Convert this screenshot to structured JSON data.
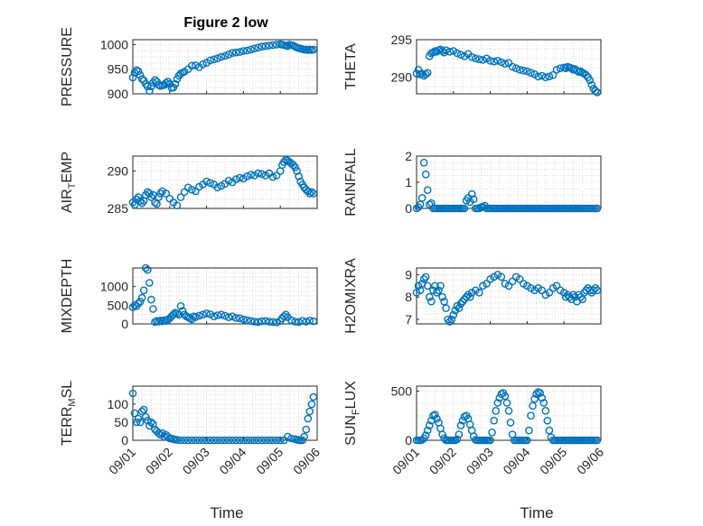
{
  "figure": {
    "title": "Figure 2 low",
    "xlabel": "Time",
    "xticks": [
      "09/01",
      "09/02",
      "09/03",
      "09/04",
      "09/05",
      "09/06"
    ],
    "marker_color": "#0072BD",
    "grid_color": "#d9d9d9"
  },
  "chart_data": [
    {
      "type": "scatter",
      "ylabel": "PRESSURE",
      "xlim": [
        0,
        5
      ],
      "ylim": [
        900,
        1010
      ],
      "yticks": [
        900,
        950,
        1000
      ],
      "x": [
        0.0,
        0.05,
        0.1,
        0.15,
        0.2,
        0.25,
        0.3,
        0.35,
        0.4,
        0.45,
        0.5,
        0.55,
        0.6,
        0.65,
        0.7,
        0.75,
        0.8,
        0.85,
        0.9,
        0.95,
        1.0,
        1.05,
        1.1,
        1.15,
        1.2,
        1.25,
        1.3,
        1.35,
        1.4,
        1.5,
        1.6,
        1.7,
        1.8,
        1.9,
        2.0,
        2.1,
        2.2,
        2.3,
        2.4,
        2.5,
        2.6,
        2.7,
        2.8,
        2.9,
        3.0,
        3.1,
        3.2,
        3.3,
        3.4,
        3.5,
        3.6,
        3.7,
        3.8,
        3.9,
        4.0,
        4.05,
        4.1,
        4.15,
        4.2,
        4.25,
        4.3,
        4.35,
        4.4,
        4.45,
        4.5,
        4.55,
        4.6,
        4.65,
        4.7,
        4.75,
        4.8,
        4.85,
        4.9
      ],
      "values": [
        933,
        943,
        948,
        946,
        938,
        930,
        927,
        920,
        915,
        906,
        915,
        923,
        928,
        925,
        918,
        916,
        917,
        918,
        922,
        925,
        920,
        912,
        913,
        920,
        930,
        937,
        941,
        943,
        945,
        950,
        957,
        958,
        954,
        960,
        963,
        968,
        970,
        972,
        975,
        977,
        980,
        983,
        984,
        985,
        987,
        988,
        990,
        992,
        994,
        996,
        997,
        998,
        999,
        1000,
        1001,
        1000,
        999,
        998,
        997,
        1000,
        999,
        998,
        996,
        994,
        993,
        992,
        991,
        990,
        990,
        989,
        990,
        989,
        990
      ]
    },
    {
      "type": "scatter",
      "ylabel": "THETA",
      "xlim": [
        0,
        5
      ],
      "ylim": [
        287.8,
        295
      ],
      "yticks": [
        290,
        295
      ],
      "x": [
        0.0,
        0.05,
        0.1,
        0.15,
        0.2,
        0.25,
        0.3,
        0.35,
        0.4,
        0.45,
        0.5,
        0.55,
        0.6,
        0.65,
        0.7,
        0.75,
        0.8,
        0.9,
        1.0,
        1.1,
        1.2,
        1.3,
        1.4,
        1.5,
        1.6,
        1.7,
        1.8,
        1.9,
        2.0,
        2.1,
        2.2,
        2.3,
        2.4,
        2.5,
        2.6,
        2.7,
        2.8,
        2.9,
        3.0,
        3.1,
        3.2,
        3.3,
        3.4,
        3.5,
        3.6,
        3.7,
        3.8,
        3.9,
        4.0,
        4.05,
        4.1,
        4.15,
        4.2,
        4.25,
        4.3,
        4.35,
        4.4,
        4.45,
        4.5,
        4.55,
        4.6,
        4.65,
        4.7,
        4.75,
        4.8,
        4.85,
        4.9
      ],
      "values": [
        290.5,
        291.0,
        290.4,
        290.5,
        290.2,
        290.4,
        290.6,
        292.8,
        293.2,
        293.3,
        293.5,
        293.4,
        293.6,
        293.7,
        293.5,
        293.3,
        293.6,
        293.4,
        293.5,
        293.2,
        293.0,
        292.8,
        293.1,
        292.7,
        292.5,
        292.4,
        292.3,
        292.5,
        292.2,
        292.1,
        292.2,
        292.0,
        291.8,
        291.9,
        291.4,
        291.2,
        291.0,
        290.9,
        290.8,
        290.6,
        290.4,
        290.1,
        290.2,
        290.0,
        290.1,
        290.3,
        291.0,
        291.2,
        291.3,
        291.2,
        291.4,
        291.3,
        291.2,
        291.0,
        291.1,
        290.9,
        290.7,
        290.8,
        290.6,
        290.5,
        290.3,
        290.0,
        289.6,
        289.0,
        288.5,
        288.2,
        288.0
      ]
    },
    {
      "type": "scatter",
      "ylabel": "AIR_TEMP",
      "xlim": [
        0,
        5
      ],
      "ylim": [
        285,
        292
      ],
      "yticks": [
        285,
        290
      ],
      "x": [
        0.0,
        0.05,
        0.1,
        0.15,
        0.2,
        0.25,
        0.3,
        0.35,
        0.4,
        0.45,
        0.5,
        0.55,
        0.6,
        0.65,
        0.7,
        0.75,
        0.8,
        0.9,
        1.0,
        1.1,
        1.2,
        1.3,
        1.4,
        1.5,
        1.6,
        1.7,
        1.8,
        1.9,
        2.0,
        2.1,
        2.2,
        2.3,
        2.4,
        2.5,
        2.6,
        2.7,
        2.8,
        2.9,
        3.0,
        3.1,
        3.2,
        3.3,
        3.4,
        3.5,
        3.6,
        3.7,
        3.8,
        3.9,
        4.0,
        4.05,
        4.1,
        4.15,
        4.2,
        4.25,
        4.3,
        4.35,
        4.4,
        4.45,
        4.5,
        4.55,
        4.6,
        4.65,
        4.7,
        4.75,
        4.8,
        4.85,
        4.9
      ],
      "values": [
        285.8,
        285.5,
        286.2,
        286.5,
        286.0,
        285.7,
        286.0,
        286.8,
        287.2,
        287.0,
        286.5,
        286.8,
        285.8,
        285.6,
        286.5,
        287.0,
        287.3,
        287.0,
        286.3,
        285.8,
        285.4,
        286.5,
        287.2,
        287.8,
        287.5,
        287.3,
        287.9,
        288.2,
        288.6,
        288.4,
        288.2,
        287.8,
        288.0,
        288.3,
        288.7,
        288.5,
        288.9,
        289.1,
        289.0,
        289.3,
        289.5,
        289.4,
        289.7,
        289.6,
        289.4,
        289.7,
        289.2,
        289.4,
        290.0,
        290.8,
        291.2,
        291.5,
        291.4,
        291.2,
        291.0,
        290.8,
        290.5,
        290.0,
        289.3,
        288.6,
        288.2,
        287.8,
        287.5,
        287.3,
        287.0,
        287.2,
        287.0
      ]
    },
    {
      "type": "scatter",
      "ylabel": "RAINFALL",
      "xlim": [
        0,
        5
      ],
      "ylim": [
        0,
        2
      ],
      "yticks": [
        0,
        1,
        2
      ],
      "x": [
        0.0,
        0.05,
        0.1,
        0.15,
        0.2,
        0.25,
        0.3,
        0.35,
        0.4,
        0.45,
        0.5,
        0.55,
        0.6,
        0.65,
        0.7,
        0.75,
        0.8,
        0.85,
        0.9,
        0.95,
        1.0,
        1.05,
        1.1,
        1.15,
        1.2,
        1.25,
        1.3,
        1.35,
        1.4,
        1.45,
        1.5,
        1.55,
        1.6,
        1.65,
        1.7,
        1.75,
        1.8,
        1.85,
        1.9,
        1.95,
        2.0,
        2.05,
        2.1,
        2.15,
        2.2,
        2.25,
        2.3,
        2.35,
        2.4,
        2.45,
        2.5,
        2.55,
        2.6,
        2.65,
        2.7,
        2.75,
        2.8,
        2.85,
        2.9,
        2.95,
        3.0,
        3.05,
        3.1,
        3.15,
        3.2,
        3.25,
        3.3,
        3.35,
        3.4,
        3.45,
        3.5,
        3.55,
        3.6,
        3.65,
        3.7,
        3.75,
        3.8,
        3.85,
        3.9,
        3.95,
        4.0,
        4.05,
        4.1,
        4.15,
        4.2,
        4.25,
        4.3,
        4.35,
        4.4,
        4.45,
        4.5,
        4.55,
        4.6,
        4.65,
        4.7,
        4.75,
        4.8,
        4.85,
        4.9
      ],
      "values": [
        0,
        0.05,
        0.15,
        0.4,
        1.75,
        1.3,
        0.7,
        0.15,
        0.2,
        0,
        0,
        0,
        0,
        0,
        0,
        0,
        0,
        0,
        0,
        0,
        0,
        0,
        0,
        0,
        0,
        0,
        0,
        0.3,
        0.4,
        0.25,
        0.55,
        0.35,
        0,
        0,
        0,
        0.05,
        0.05,
        0.1,
        0,
        0,
        0,
        0,
        0,
        0,
        0,
        0,
        0,
        0,
        0,
        0,
        0,
        0,
        0,
        0,
        0,
        0,
        0,
        0,
        0,
        0,
        0,
        0,
        0,
        0,
        0,
        0,
        0,
        0,
        0,
        0,
        0,
        0,
        0,
        0,
        0,
        0,
        0,
        0,
        0,
        0,
        0,
        0,
        0,
        0,
        0,
        0,
        0,
        0,
        0,
        0,
        0,
        0,
        0,
        0,
        0,
        0,
        0,
        0,
        0
      ]
    },
    {
      "type": "scatter",
      "ylabel": "MIXDEPTH",
      "xlim": [
        0,
        5
      ],
      "ylim": [
        0,
        1500
      ],
      "yticks": [
        0,
        500,
        1000
      ],
      "x": [
        0.0,
        0.05,
        0.1,
        0.15,
        0.2,
        0.25,
        0.3,
        0.35,
        0.4,
        0.45,
        0.5,
        0.55,
        0.6,
        0.65,
        0.7,
        0.75,
        0.8,
        0.85,
        0.9,
        0.95,
        1.0,
        1.05,
        1.1,
        1.15,
        1.2,
        1.25,
        1.3,
        1.35,
        1.4,
        1.45,
        1.5,
        1.55,
        1.6,
        1.65,
        1.7,
        1.8,
        1.9,
        2.0,
        2.1,
        2.2,
        2.3,
        2.4,
        2.5,
        2.6,
        2.7,
        2.8,
        2.9,
        3.0,
        3.1,
        3.2,
        3.3,
        3.4,
        3.5,
        3.6,
        3.7,
        3.8,
        3.9,
        4.0,
        4.05,
        4.1,
        4.15,
        4.2,
        4.3,
        4.4,
        4.5,
        4.6,
        4.7,
        4.8,
        4.9
      ],
      "values": [
        450,
        500,
        480,
        550,
        600,
        700,
        900,
        1500,
        1450,
        1100,
        650,
        400,
        50,
        80,
        60,
        90,
        70,
        100,
        80,
        120,
        150,
        200,
        250,
        300,
        280,
        250,
        480,
        350,
        250,
        200,
        180,
        150,
        120,
        200,
        180,
        220,
        250,
        280,
        260,
        200,
        230,
        250,
        220,
        180,
        200,
        160,
        150,
        120,
        100,
        80,
        60,
        50,
        70,
        80,
        60,
        50,
        40,
        80,
        150,
        200,
        250,
        180,
        100,
        60,
        50,
        80,
        60,
        90,
        70
      ]
    },
    {
      "type": "scatter",
      "ylabel": "H2OMIXRA",
      "xlim": [
        0,
        5
      ],
      "ylim": [
        6.8,
        9.3
      ],
      "yticks": [
        7,
        8,
        9
      ],
      "x": [
        0.0,
        0.05,
        0.1,
        0.15,
        0.2,
        0.25,
        0.3,
        0.35,
        0.4,
        0.45,
        0.5,
        0.55,
        0.6,
        0.65,
        0.7,
        0.75,
        0.8,
        0.85,
        0.9,
        0.95,
        1.0,
        1.05,
        1.1,
        1.15,
        1.2,
        1.25,
        1.3,
        1.35,
        1.4,
        1.45,
        1.5,
        1.6,
        1.7,
        1.8,
        1.9,
        2.0,
        2.1,
        2.2,
        2.3,
        2.4,
        2.5,
        2.6,
        2.7,
        2.8,
        2.9,
        3.0,
        3.1,
        3.2,
        3.3,
        3.4,
        3.5,
        3.6,
        3.7,
        3.8,
        3.9,
        4.0,
        4.05,
        4.1,
        4.15,
        4.2,
        4.25,
        4.3,
        4.35,
        4.4,
        4.45,
        4.5,
        4.55,
        4.6,
        4.65,
        4.7,
        4.75,
        4.8,
        4.85,
        4.9
      ],
      "values": [
        8.2,
        8.5,
        8.3,
        8.6,
        8.8,
        8.9,
        8.5,
        8.0,
        7.8,
        8.3,
        8.5,
        8.2,
        8.3,
        8.5,
        8.0,
        7.8,
        7.5,
        7.0,
        6.9,
        7.0,
        7.2,
        7.4,
        7.6,
        7.5,
        7.7,
        7.8,
        7.9,
        8.0,
        8.1,
        8.0,
        8.2,
        8.3,
        8.2,
        8.5,
        8.6,
        8.8,
        8.9,
        9.0,
        8.9,
        8.6,
        8.5,
        8.7,
        8.9,
        8.8,
        8.6,
        8.5,
        8.4,
        8.3,
        8.4,
        8.3,
        8.1,
        8.2,
        8.4,
        8.5,
        8.3,
        8.2,
        8.0,
        8.1,
        8.0,
        7.9,
        8.1,
        8.0,
        7.8,
        8.1,
        8.0,
        7.9,
        8.2,
        8.3,
        8.4,
        8.3,
        8.2,
        8.3,
        8.4,
        8.3
      ]
    },
    {
      "type": "scatter",
      "ylabel": "TERR_MSL",
      "xlim": [
        0,
        5
      ],
      "ylim": [
        0,
        150
      ],
      "yticks": [
        0,
        50,
        100
      ],
      "x": [
        0.0,
        0.05,
        0.1,
        0.15,
        0.2,
        0.25,
        0.3,
        0.35,
        0.4,
        0.45,
        0.5,
        0.55,
        0.6,
        0.65,
        0.7,
        0.75,
        0.8,
        0.85,
        0.9,
        0.95,
        1.0,
        1.05,
        1.1,
        1.15,
        1.2,
        1.3,
        1.4,
        1.5,
        1.6,
        1.7,
        1.8,
        1.9,
        2.0,
        2.1,
        2.2,
        2.3,
        2.4,
        2.5,
        2.6,
        2.7,
        2.8,
        2.9,
        3.0,
        3.1,
        3.2,
        3.3,
        3.4,
        3.5,
        3.6,
        3.7,
        3.8,
        3.9,
        4.0,
        4.1,
        4.2,
        4.3,
        4.4,
        4.45,
        4.5,
        4.55,
        4.6,
        4.65,
        4.7,
        4.75,
        4.8,
        4.85,
        4.9
      ],
      "values": [
        130,
        75,
        50,
        60,
        50,
        80,
        85,
        65,
        55,
        40,
        50,
        45,
        30,
        25,
        20,
        15,
        20,
        10,
        15,
        10,
        5,
        5,
        3,
        2,
        1,
        0,
        0,
        0,
        0,
        0,
        0,
        0,
        0,
        0,
        0,
        0,
        0,
        0,
        0,
        0,
        0,
        0,
        0,
        0,
        0,
        0,
        0,
        0,
        0,
        0,
        0,
        0,
        0,
        0,
        10,
        5,
        3,
        2,
        0,
        0,
        0,
        10,
        30,
        60,
        80,
        100,
        120
      ]
    },
    {
      "type": "scatter",
      "ylabel": "SUN_FLUX",
      "xlim": [
        0,
        5
      ],
      "ylim": [
        0,
        550
      ],
      "yticks": [
        0,
        500
      ],
      "x": [
        0.0,
        0.05,
        0.1,
        0.15,
        0.2,
        0.25,
        0.3,
        0.35,
        0.4,
        0.45,
        0.5,
        0.55,
        0.6,
        0.65,
        0.7,
        0.75,
        0.8,
        0.85,
        0.9,
        0.95,
        1.0,
        1.05,
        1.1,
        1.15,
        1.2,
        1.25,
        1.3,
        1.35,
        1.4,
        1.45,
        1.5,
        1.55,
        1.6,
        1.65,
        1.7,
        1.75,
        1.8,
        1.85,
        1.9,
        1.95,
        2.0,
        2.05,
        2.1,
        2.15,
        2.2,
        2.25,
        2.3,
        2.35,
        2.4,
        2.45,
        2.5,
        2.55,
        2.6,
        2.65,
        2.7,
        2.75,
        2.8,
        2.85,
        2.9,
        2.95,
        3.0,
        3.05,
        3.1,
        3.15,
        3.2,
        3.25,
        3.3,
        3.35,
        3.4,
        3.45,
        3.5,
        3.55,
        3.6,
        3.65,
        3.7,
        3.75,
        3.8,
        3.85,
        3.9,
        3.95,
        4.0,
        4.05,
        4.1,
        4.15,
        4.2,
        4.25,
        4.3,
        4.35,
        4.4,
        4.45,
        4.5,
        4.55,
        4.6,
        4.65,
        4.7,
        4.75,
        4.8,
        4.85,
        4.9
      ],
      "values": [
        0,
        0,
        0,
        5,
        20,
        50,
        100,
        150,
        200,
        250,
        260,
        220,
        180,
        120,
        60,
        20,
        0,
        0,
        0,
        0,
        0,
        0,
        10,
        60,
        150,
        200,
        240,
        250,
        220,
        160,
        100,
        40,
        5,
        0,
        0,
        0,
        0,
        0,
        0,
        0,
        0,
        80,
        200,
        300,
        380,
        430,
        470,
        480,
        450,
        380,
        300,
        180,
        60,
        0,
        0,
        0,
        0,
        0,
        0,
        0,
        0,
        100,
        250,
        350,
        420,
        470,
        490,
        480,
        430,
        380,
        300,
        200,
        100,
        30,
        0,
        0,
        0,
        0,
        0,
        0,
        0,
        0,
        0,
        0,
        0,
        0,
        0,
        0,
        0,
        0,
        0,
        0,
        0,
        0,
        0,
        0,
        0,
        0,
        0
      ]
    }
  ]
}
